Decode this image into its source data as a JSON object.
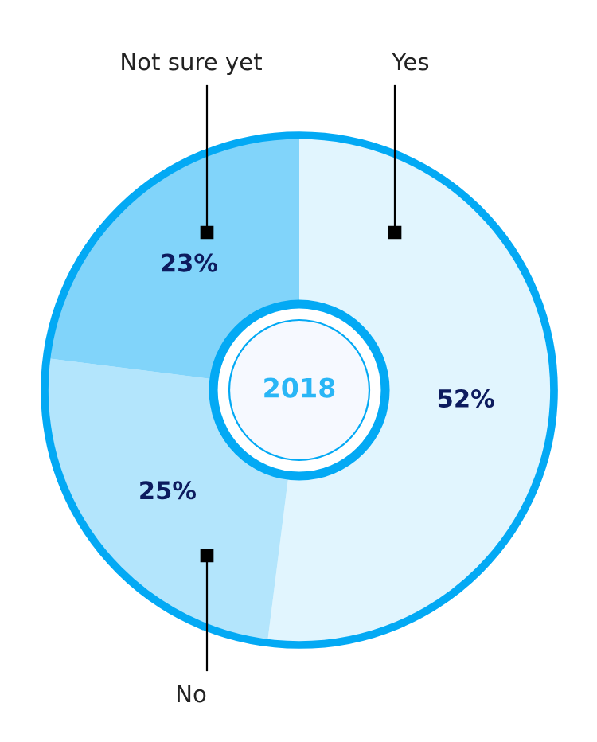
{
  "chart_data": {
    "type": "donut",
    "categories": [
      "Yes",
      "No",
      "Not sure yet"
    ],
    "values": [
      52,
      25,
      23
    ],
    "value_labels": [
      "52%",
      "25%",
      "23%"
    ],
    "colors": [
      "#e1f5fe",
      "#b3e5fc",
      "#81d4fa"
    ],
    "annotations": [
      "2018"
    ],
    "legend": false
  }
}
